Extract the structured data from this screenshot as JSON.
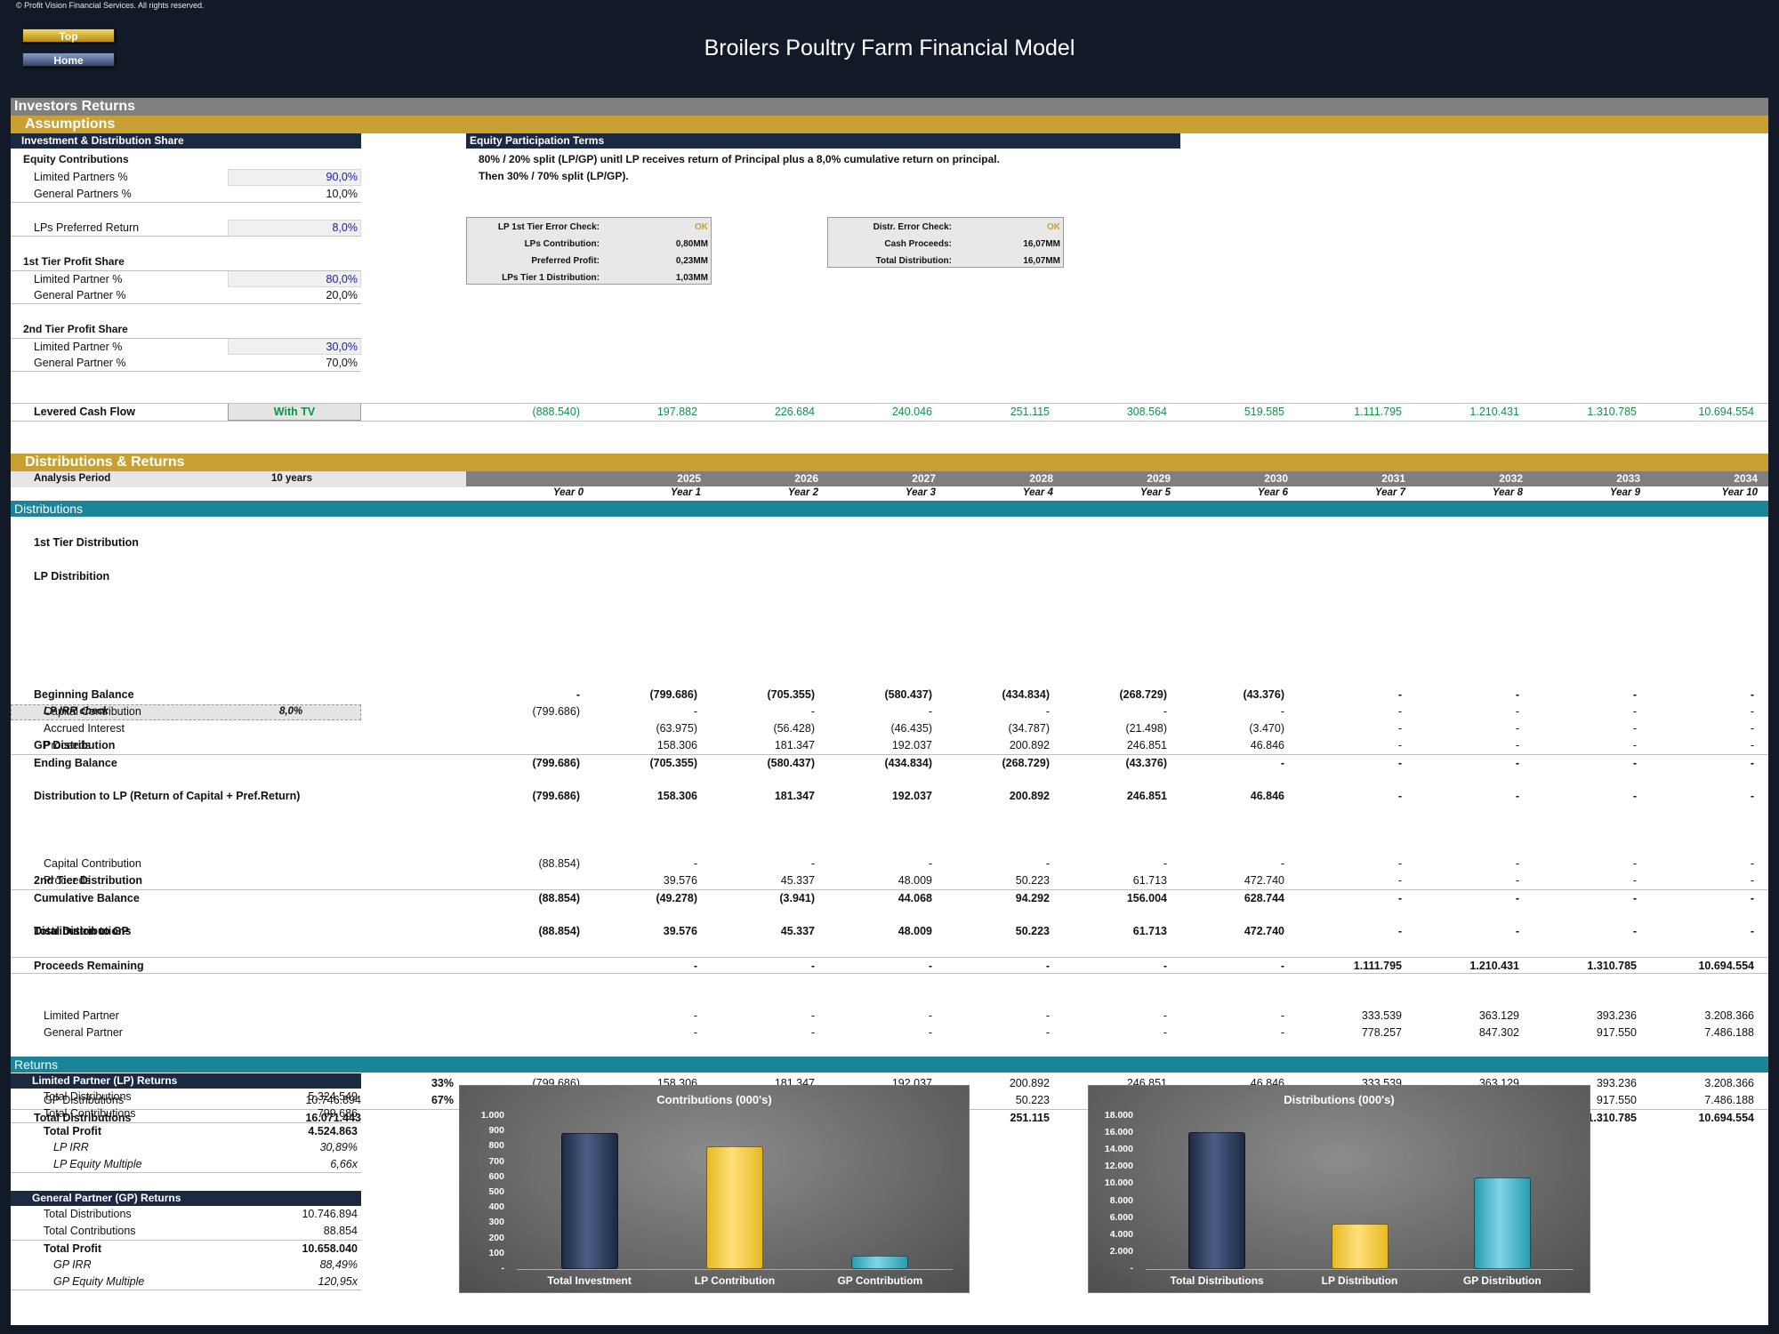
{
  "copyright": "© Profit Vision Financial Services. All rights reserved.",
  "nav": {
    "top": "Top",
    "home": "Home"
  },
  "title": "Broilers Poultry Farm Financial Model",
  "section": "Investors Returns",
  "assumptions": {
    "band": "Assumptions",
    "share_header": "Investment & Distribution Share",
    "equity_contributions": "Equity Contributions",
    "lp_pct_label": "Limited Partners %",
    "lp_pct": "90,0%",
    "gp_pct_label": "General Partners %",
    "gp_pct": "10,0%",
    "pref_label": "LPs Preferred Return",
    "pref": "8,0%",
    "tier1_label": "1st Tier Profit Share",
    "t1_lp_label": "Limited Partner %",
    "t1_lp": "80,0%",
    "t1_gp_label": "General Partner %",
    "t1_gp": "20,0%",
    "tier2_label": "2nd Tier Profit Share",
    "t2_lp_label": "Limited Partner %",
    "t2_lp": "30,0%",
    "t2_gp_label": "General Partner %",
    "t2_gp": "70,0%",
    "terms_header": "Equity Participation Terms",
    "terms_line1": "80% / 20% split (LP/GP) unitl LP receives return of Principal plus a 8,0% cumulative return on principal.",
    "terms_line2": "Then 30% / 70% split (LP/GP).",
    "check1": [
      [
        "LP 1st Tier Error Check:",
        "OK"
      ],
      [
        "LPs Contribution:",
        "0,80MM"
      ],
      [
        "Preferred Profit:",
        "0,23MM"
      ],
      [
        "LPs Tier 1 Distribution:",
        "1,03MM"
      ]
    ],
    "check2": [
      [
        "Distr. Error Check:",
        "OK"
      ],
      [
        "Cash Proceeds:",
        "16,07MM"
      ],
      [
        "Total Distribution:",
        "16,07MM"
      ]
    ],
    "levered_label": "Levered Cash Flow",
    "levered_option": "With TV",
    "levered": [
      "(888.540)",
      "197.882",
      "226.684",
      "240.046",
      "251.115",
      "308.564",
      "519.585",
      "1.111.795",
      "1.210.431",
      "1.310.785",
      "10.694.554"
    ]
  },
  "dist": {
    "band": "Distributions & Returns",
    "period_label": "Analysis Period",
    "period_value": "10 years",
    "years": [
      "",
      "2025",
      "2026",
      "2027",
      "2028",
      "2029",
      "2030",
      "2031",
      "2032",
      "2033",
      "2034"
    ],
    "year_idx": [
      "Year 0",
      "Year 1",
      "Year 2",
      "Year 3",
      "Year 4",
      "Year 5",
      "Year 6",
      "Year 7",
      "Year 8",
      "Year 9",
      "Year 10"
    ],
    "sub_band": "Distributions",
    "tier1": "1st Tier Distribution",
    "lp_dist": "LP Distribition",
    "rows": [
      {
        "label": "Beginning Balance",
        "bold": true,
        "v": [
          "-",
          "(799.686)",
          "(705.355)",
          "(580.437)",
          "(434.834)",
          "(268.729)",
          "(43.376)",
          "-",
          "-",
          "-",
          "-"
        ]
      },
      {
        "label": "Capital Contribution",
        "indent": true,
        "v": [
          "(799.686)",
          "-",
          "-",
          "-",
          "-",
          "-",
          "-",
          "-",
          "-",
          "-",
          "-"
        ]
      },
      {
        "label": "Accrued Interest",
        "indent": true,
        "v": [
          "",
          "(63.975)",
          "(56.428)",
          "(46.435)",
          "(34.787)",
          "(21.498)",
          "(3.470)",
          "-",
          "-",
          "-",
          "-"
        ]
      },
      {
        "label": "Proceeds",
        "indent": true,
        "v": [
          "",
          "158.306",
          "181.347",
          "192.037",
          "200.892",
          "246.851",
          "46.846",
          "-",
          "-",
          "-",
          "-"
        ]
      },
      {
        "label": "Ending Balance",
        "bold": true,
        "line": true,
        "v": [
          "(799.686)",
          "(705.355)",
          "(580.437)",
          "(434.834)",
          "(268.729)",
          "(43.376)",
          "-",
          "-",
          "-",
          "-",
          "-"
        ]
      },
      {
        "label": "Distribution to LP (Return of Capital + Pref.Return)",
        "bold": true,
        "v": [
          "(799.686)",
          "158.306",
          "181.347",
          "192.037",
          "200.892",
          "246.851",
          "46.846",
          "-",
          "-",
          "-",
          "-"
        ]
      },
      {
        "label": "Capital Contribution",
        "indent": true,
        "v": [
          "(88.854)",
          "-",
          "-",
          "-",
          "-",
          "-",
          "-",
          "-",
          "-",
          "-",
          "-"
        ]
      },
      {
        "label": "Proceeds",
        "indent": true,
        "v": [
          "",
          "39.576",
          "45.337",
          "48.009",
          "50.223",
          "61.713",
          "472.740",
          "-",
          "-",
          "-",
          "-"
        ]
      },
      {
        "label": "Cumulative Balance",
        "bold": true,
        "line": true,
        "v": [
          "(88.854)",
          "(49.278)",
          "(3.941)",
          "44.068",
          "94.292",
          "156.004",
          "628.744",
          "-",
          "-",
          "-",
          "-"
        ]
      },
      {
        "label": "Distribution to GP",
        "bold": true,
        "v": [
          "(88.854)",
          "39.576",
          "45.337",
          "48.009",
          "50.223",
          "61.713",
          "472.740",
          "-",
          "-",
          "-",
          "-"
        ]
      },
      {
        "label": "Proceeds Remaining",
        "bold": true,
        "line": true,
        "bline": true,
        "v": [
          "",
          "-",
          "-",
          "-",
          "-",
          "-",
          "-",
          "1.111.795",
          "1.210.431",
          "1.310.785",
          "10.694.554"
        ]
      },
      {
        "label": "Limited Partner",
        "indent": true,
        "v": [
          "",
          "-",
          "-",
          "-",
          "-",
          "-",
          "-",
          "333.539",
          "363.129",
          "393.236",
          "3.208.366"
        ]
      },
      {
        "label": "General Partner",
        "indent": true,
        "v": [
          "",
          "-",
          "-",
          "-",
          "-",
          "-",
          "-",
          "778.257",
          "847.302",
          "917.550",
          "7.486.188"
        ]
      },
      {
        "label": "LP Distributions",
        "indent": true,
        "total": "5.324.549",
        "pct": "33%",
        "v": [
          "(799.686)",
          "158.306",
          "181.347",
          "192.037",
          "200.892",
          "246.851",
          "46.846",
          "333.539",
          "363.129",
          "393.236",
          "3.208.366"
        ]
      },
      {
        "label": "GP Distributions",
        "indent": true,
        "total": "10.746.894",
        "pct": "67%",
        "v": [
          "(88.854)",
          "39.576",
          "45.337",
          "48.009",
          "50.223",
          "61.713",
          "472.740",
          "778.257",
          "847.302",
          "917.550",
          "7.486.188"
        ]
      },
      {
        "label": "Total Distributions",
        "bold": true,
        "line": true,
        "total": "16.071.443",
        "v": [
          "(888.540)",
          "197.882",
          "226.684",
          "240.046",
          "251.115",
          "308.564",
          "519.585",
          "1.111.795",
          "1.210.431",
          "1.310.785",
          "10.694.554"
        ]
      }
    ],
    "irr_label": "LP IRR check",
    "irr_value": "8,0%",
    "gp_dist": "GP Distribution",
    "tier2": "2nd Tier Distribution",
    "total_dist": "Total Distributions"
  },
  "returns": {
    "band": "Returns",
    "lp_header": "Limited Partner (LP) Returns",
    "lp": [
      [
        "Total Distributions",
        "5.324.549"
      ],
      [
        "Total Contributions",
        "799.686"
      ],
      [
        "Total Profit",
        "4.524.863"
      ],
      [
        "LP IRR",
        "30,89%"
      ],
      [
        "LP Equity Multiple",
        "6,66x"
      ]
    ],
    "gp_header": "General Partner (GP) Returns",
    "gp": [
      [
        "Total Distributions",
        "10.746.894"
      ],
      [
        "Total Contributions",
        "88.854"
      ],
      [
        "Total Profit",
        "10.658.040"
      ],
      [
        "GP IRR",
        "88,49%"
      ],
      [
        "GP Equity Multiple",
        "120,95x"
      ]
    ]
  },
  "colors": {
    "navy": "#1c2942",
    "gold": "#e8b923",
    "teal": "#2a9bb0"
  },
  "chart_data": [
    {
      "type": "bar",
      "title": "Contributions (000's)",
      "categories": [
        "Total Investment",
        "LP Contribution",
        "GP Contributiom"
      ],
      "values": [
        888.54,
        799.686,
        88.854
      ],
      "ylim": [
        0,
        1000
      ],
      "ticks": [
        "-",
        "100",
        "200",
        "300",
        "400",
        "500",
        "600",
        "700",
        "800",
        "900",
        "1.000"
      ],
      "colors": [
        "#1c2942",
        "#e8b923",
        "#2a9bb0"
      ]
    },
    {
      "type": "bar",
      "title": "Distributions (000's)",
      "categories": [
        "Total Distributions",
        "LP Distribution",
        "GP Distribution"
      ],
      "values": [
        16071.443,
        5324.549,
        10746.894
      ],
      "ylim": [
        0,
        18000
      ],
      "ticks": [
        "-",
        "2.000",
        "4.000",
        "6.000",
        "8.000",
        "10.000",
        "12.000",
        "14.000",
        "16.000",
        "18.000"
      ],
      "colors": [
        "#1c2942",
        "#e8b923",
        "#2a9bb0"
      ]
    }
  ]
}
